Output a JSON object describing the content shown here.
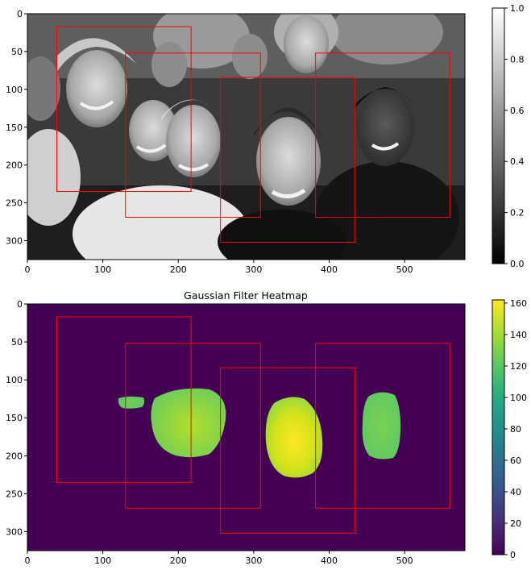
{
  "chart_data": [
    {
      "type": "image",
      "title": "",
      "image_description": "grayscale selfie photograph with red detection boxes",
      "x_range": [
        0,
        580
      ],
      "y_range": [
        0,
        325
      ],
      "y_inverted": true,
      "x_ticks": [
        0,
        100,
        200,
        300,
        400,
        500
      ],
      "y_ticks": [
        0,
        50,
        100,
        150,
        200,
        250,
        300
      ],
      "boxes": [
        {
          "x0": 39,
          "y0": 17,
          "x1": 217,
          "y1": 235
        },
        {
          "x0": 130,
          "y0": 52,
          "x1": 309,
          "y1": 269
        },
        {
          "x0": 256,
          "y0": 84,
          "x1": 434,
          "y1": 302
        },
        {
          "x0": 382,
          "y0": 52,
          "x1": 560,
          "y1": 269
        }
      ],
      "colorbar": {
        "min": 0.0,
        "max": 1.0,
        "ticks": [
          "0.0",
          "0.2",
          "0.4",
          "0.6",
          "0.8",
          "1.0"
        ],
        "colormap": "gray"
      }
    },
    {
      "type": "heatmap",
      "title": "Gaussian Filter Heatmap",
      "x_range": [
        0,
        580
      ],
      "y_range": [
        0,
        325
      ],
      "y_inverted": true,
      "x_ticks": [
        0,
        100,
        200,
        300,
        400,
        500
      ],
      "y_ticks": [
        0,
        50,
        100,
        150,
        200,
        250,
        300
      ],
      "background_value": 0,
      "blobs": [
        {
          "cx": 138,
          "cy": 131,
          "rx": 17,
          "ry": 8,
          "value": 118
        },
        {
          "cx": 215,
          "cy": 157,
          "rx": 48,
          "ry": 45,
          "value": 140
        },
        {
          "cx": 354,
          "cy": 175,
          "rx": 37,
          "ry": 52,
          "value": 160
        },
        {
          "cx": 470,
          "cy": 162,
          "rx": 26,
          "ry": 46,
          "value": 118
        }
      ],
      "boxes": [
        {
          "x0": 39,
          "y0": 17,
          "x1": 217,
          "y1": 235
        },
        {
          "x0": 130,
          "y0": 52,
          "x1": 309,
          "y1": 269
        },
        {
          "x0": 256,
          "y0": 84,
          "x1": 434,
          "y1": 302
        },
        {
          "x0": 382,
          "y0": 52,
          "x1": 560,
          "y1": 269
        }
      ],
      "colorbar": {
        "min": 0,
        "max": 162,
        "ticks": [
          "0",
          "20",
          "40",
          "60",
          "80",
          "100",
          "120",
          "140",
          "160"
        ],
        "colormap": "viridis"
      }
    }
  ],
  "colors": {
    "box": "#ff0000",
    "viridis_low": "#440154",
    "viridis_high": "#fde725"
  }
}
